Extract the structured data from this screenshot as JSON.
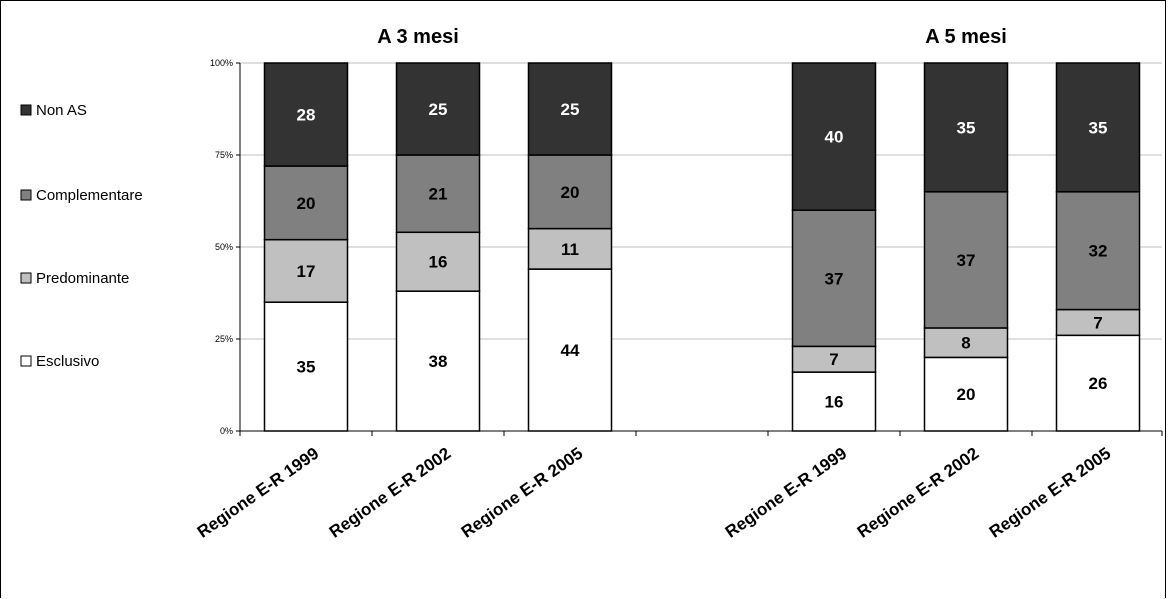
{
  "chart_data": {
    "type": "bar",
    "stacked": true,
    "percent": true,
    "panels": [
      {
        "title": "A 3 mesi",
        "categories": [
          "Regione E-R 1999",
          "Regione E-R 2002",
          "Regione E-R 2005"
        ],
        "series": [
          {
            "name": "Esclusivo",
            "values": [
              35,
              38,
              44
            ]
          },
          {
            "name": "Predominante",
            "values": [
              17,
              16,
              11
            ]
          },
          {
            "name": "Complementare",
            "values": [
              20,
              21,
              20
            ]
          },
          {
            "name": "Non AS",
            "values": [
              28,
              25,
              25
            ]
          }
        ]
      },
      {
        "title": "A 5 mesi",
        "categories": [
          "Regione E-R 1999",
          "Regione E-R 2002",
          "Regione E-R 2005"
        ],
        "series": [
          {
            "name": "Esclusivo",
            "values": [
              16,
              20,
              26
            ]
          },
          {
            "name": "Predominante",
            "values": [
              7,
              8,
              7
            ]
          },
          {
            "name": "Complementare",
            "values": [
              37,
              37,
              32
            ]
          },
          {
            "name": "Non AS",
            "values": [
              40,
              35,
              35
            ]
          }
        ]
      }
    ],
    "y_ticks": [
      "0%",
      "25%",
      "50%",
      "75%",
      "100%"
    ],
    "ylim": [
      0,
      100
    ],
    "legend": {
      "placement": "left",
      "entries": [
        "Non AS",
        "Complementare",
        "Predominante",
        "Esclusivo"
      ]
    },
    "colors": {
      "Esclusivo": "#ffffff",
      "Predominante": "#c0c0c0",
      "Complementare": "#808080",
      "Non AS": "#333333"
    },
    "label_colors": {
      "Esclusivo": "#000000",
      "Predominante": "#000000",
      "Complementare": "#000000",
      "Non AS": "#ffffff"
    },
    "grid": true
  }
}
